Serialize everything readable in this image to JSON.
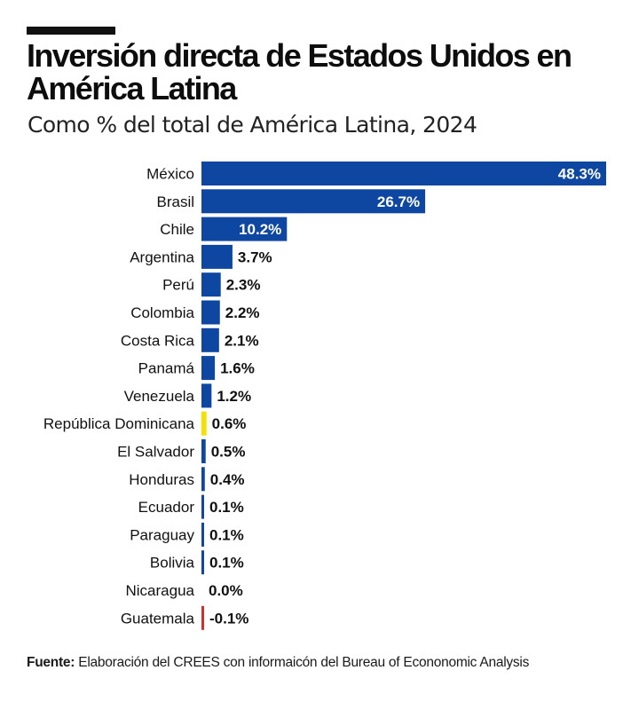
{
  "header": {
    "title": "Inversión directa de Estados Unidos en América Latina",
    "subtitle": "Como % del total de América Latina, 2024"
  },
  "chart_data": {
    "type": "bar",
    "orientation": "horizontal",
    "title": "Inversión directa de Estados Unidos en América Latina",
    "subtitle": "Como % del total de América Latina, 2024",
    "xlabel": "",
    "ylabel": "",
    "unit": "%",
    "categories": [
      "México",
      "Brasil",
      "Chile",
      "Argentina",
      "Perú",
      "Colombia",
      "Costa Rica",
      "Panamá",
      "Venezuela",
      "República Dominicana",
      "El Salvador",
      "Honduras",
      "Ecuador",
      "Paraguay",
      "Bolivia",
      "Nicaragua",
      "Guatemala"
    ],
    "values": [
      48.3,
      26.7,
      10.2,
      3.7,
      2.3,
      2.2,
      2.1,
      1.6,
      1.2,
      0.6,
      0.5,
      0.4,
      0.1,
      0.1,
      0.1,
      0.0,
      -0.1
    ],
    "value_labels": [
      "48.3%",
      "26.7%",
      "10.2%",
      "3.7%",
      "2.3%",
      "2.2%",
      "2.1%",
      "1.6%",
      "1.2%",
      "0.6%",
      "0.5%",
      "0.4%",
      "0.1%",
      "0.1%",
      "0.1%",
      "0.0%",
      "-0.1%"
    ],
    "highlight": "República Dominicana",
    "colors": {
      "default": "#0d47a1",
      "highlight": "#f5e100",
      "negative": "#d32f2f"
    },
    "xlim": [
      0,
      48.3
    ],
    "grid": false,
    "legend": "none"
  },
  "footer": {
    "source_label": "Fuente:",
    "source_text": " Elaboración del CREES con informaicón del Bureau of Econonomic Analysis"
  }
}
